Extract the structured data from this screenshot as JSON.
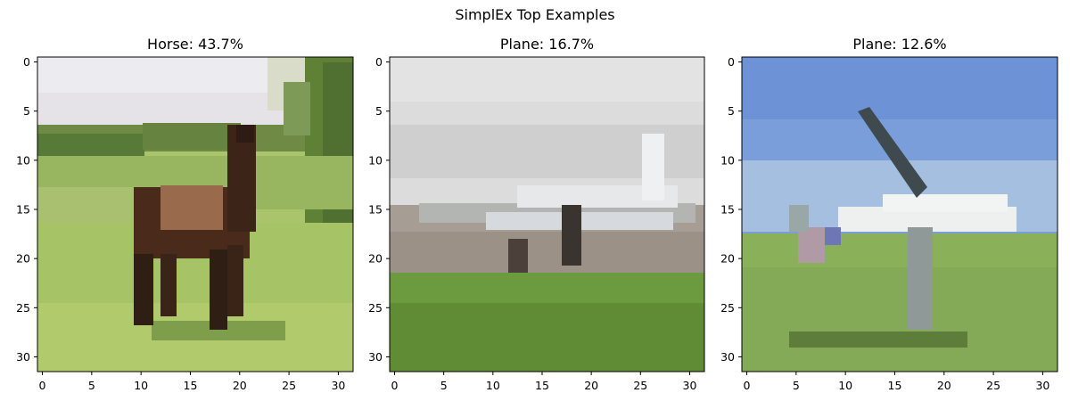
{
  "figure": {
    "title": "SimplEx Top Examples"
  },
  "chart_data": [
    {
      "type": "heatmap",
      "title": "Horse: 43.7%",
      "label": "Horse",
      "percent": 43.7,
      "image_size": [
        32,
        32
      ],
      "x_ticks": [
        0,
        5,
        10,
        15,
        20,
        25,
        30
      ],
      "y_ticks": [
        0,
        5,
        10,
        15,
        20,
        25,
        30
      ],
      "xlim": [
        -0.5,
        31.5
      ],
      "ylim": [
        31.5,
        -0.5
      ]
    },
    {
      "type": "heatmap",
      "title": "Plane: 16.7%",
      "label": "Plane",
      "percent": 16.7,
      "image_size": [
        32,
        32
      ],
      "x_ticks": [
        0,
        5,
        10,
        15,
        20,
        25,
        30
      ],
      "y_ticks": [
        0,
        5,
        10,
        15,
        20,
        25,
        30
      ],
      "xlim": [
        -0.5,
        31.5
      ],
      "ylim": [
        31.5,
        -0.5
      ]
    },
    {
      "type": "heatmap",
      "title": "Plane: 12.6%",
      "label": "Plane",
      "percent": 12.6,
      "image_size": [
        32,
        32
      ],
      "x_ticks": [
        0,
        5,
        10,
        15,
        20,
        25,
        30
      ],
      "y_ticks": [
        0,
        5,
        10,
        15,
        20,
        25,
        30
      ],
      "xlim": [
        -0.5,
        31.5
      ],
      "ylim": [
        31.5,
        -0.5
      ]
    }
  ]
}
